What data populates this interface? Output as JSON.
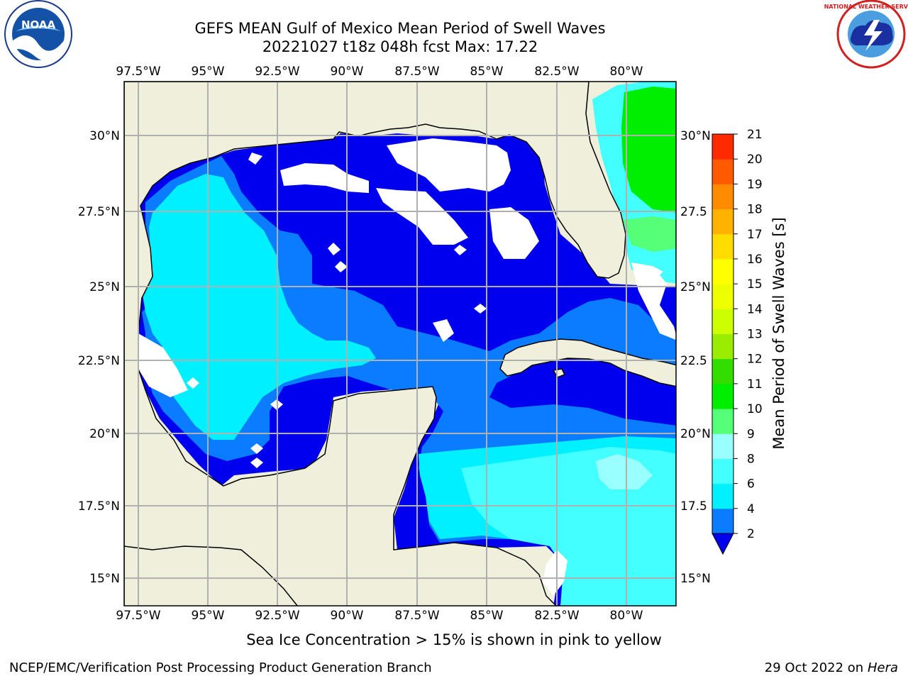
{
  "header": {
    "title_line1": "GEFS MEAN Gulf of Mexico Mean Period of Swell Waves",
    "title_line2": "20221027 t18z 048h fcst   Max: 17.22"
  },
  "logos": {
    "left": {
      "icon": "noaa-logo",
      "text": "NOAA"
    },
    "right": {
      "icon": "nws-logo",
      "text": "NATIONAL WEATHER SERVICE"
    }
  },
  "map": {
    "lon_ticks": [
      "97.5°W",
      "95°W",
      "92.5°W",
      "90°W",
      "87.5°W",
      "85°W",
      "82.5°W",
      "80°W"
    ],
    "lat_ticks_left": [
      "30°N",
      "27.5°N",
      "25°N",
      "22.5°N",
      "20°N",
      "17.5°N",
      "15°N"
    ],
    "lat_ticks_right": [
      "30°N",
      "27.5",
      "25°N",
      "22.5",
      "20°N",
      "17.5",
      "15°N"
    ],
    "land_color": "#efefdc",
    "grid_color": "#b0b0b0"
  },
  "colorbar": {
    "label": "Mean Period of Swell Waves [s]",
    "ticks": [
      "2",
      "4",
      "6",
      "8",
      "9",
      "10",
      "11",
      "12",
      "13",
      "14",
      "15",
      "16",
      "17",
      "18",
      "19",
      "20",
      "21"
    ],
    "colors": [
      "#0a7cff",
      "#00f0ff",
      "#44ffff",
      "#99ffff",
      "#55ff77",
      "#00ee00",
      "#33dd00",
      "#99ee00",
      "#ccff00",
      "#eeff00",
      "#ffff00",
      "#ffdd00",
      "#ffb300",
      "#ff8c00",
      "#ff5a00",
      "#ff2a00"
    ],
    "under_color": "#0000ee"
  },
  "subtitle": "Sea Ice Concentration > 15% is shown in pink to yellow",
  "footer": {
    "left": "NCEP/EMC/Verification Post Processing Product Generation Branch",
    "right_prefix": "29 Oct 2022 on ",
    "right_host": "Hera"
  }
}
